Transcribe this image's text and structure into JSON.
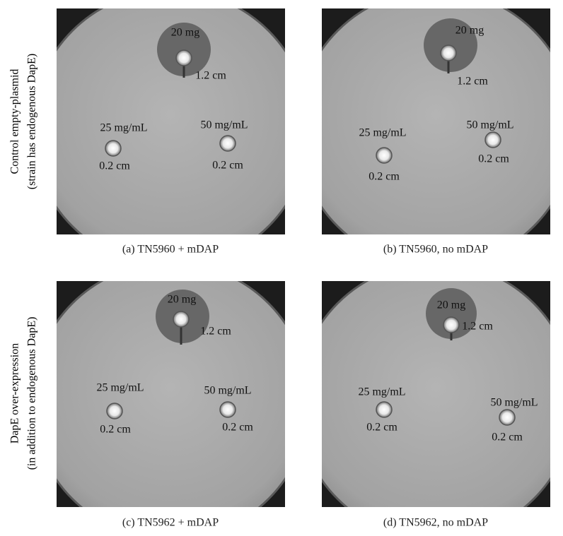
{
  "row_labels": [
    [
      "Control empty-plasmid",
      "(strain has endogenous DapE)"
    ],
    [
      "DapE over-expression",
      "(in addition to endogenous DapE)"
    ]
  ],
  "panels": [
    {
      "caption": "(a)  TN5960 + mDAP",
      "labels": [
        "20 mg",
        "1.2 cm",
        "25 mg/mL",
        "0.2 cm",
        "50 mg/mL",
        "0.2 cm"
      ]
    },
    {
      "caption": "(b)  TN5960, no mDAP",
      "labels": [
        "20 mg",
        "1.2 cm",
        "25 mg/mL",
        "0.2 cm",
        "50 mg/mL",
        "0.2 cm"
      ]
    },
    {
      "caption": "(c)  TN5962 + mDAP",
      "labels": [
        "20 mg",
        "1.2 cm",
        "25 mg/mL",
        "0.2 cm",
        "50 mg/mL",
        "0.2 cm"
      ]
    },
    {
      "caption": "(d)  TN5962, no mDAP",
      "labels": [
        "20 mg",
        "1.2 cm",
        "25 mg/mL",
        "0.2 cm",
        "50 mg/mL",
        "0.2 cm"
      ]
    }
  ]
}
